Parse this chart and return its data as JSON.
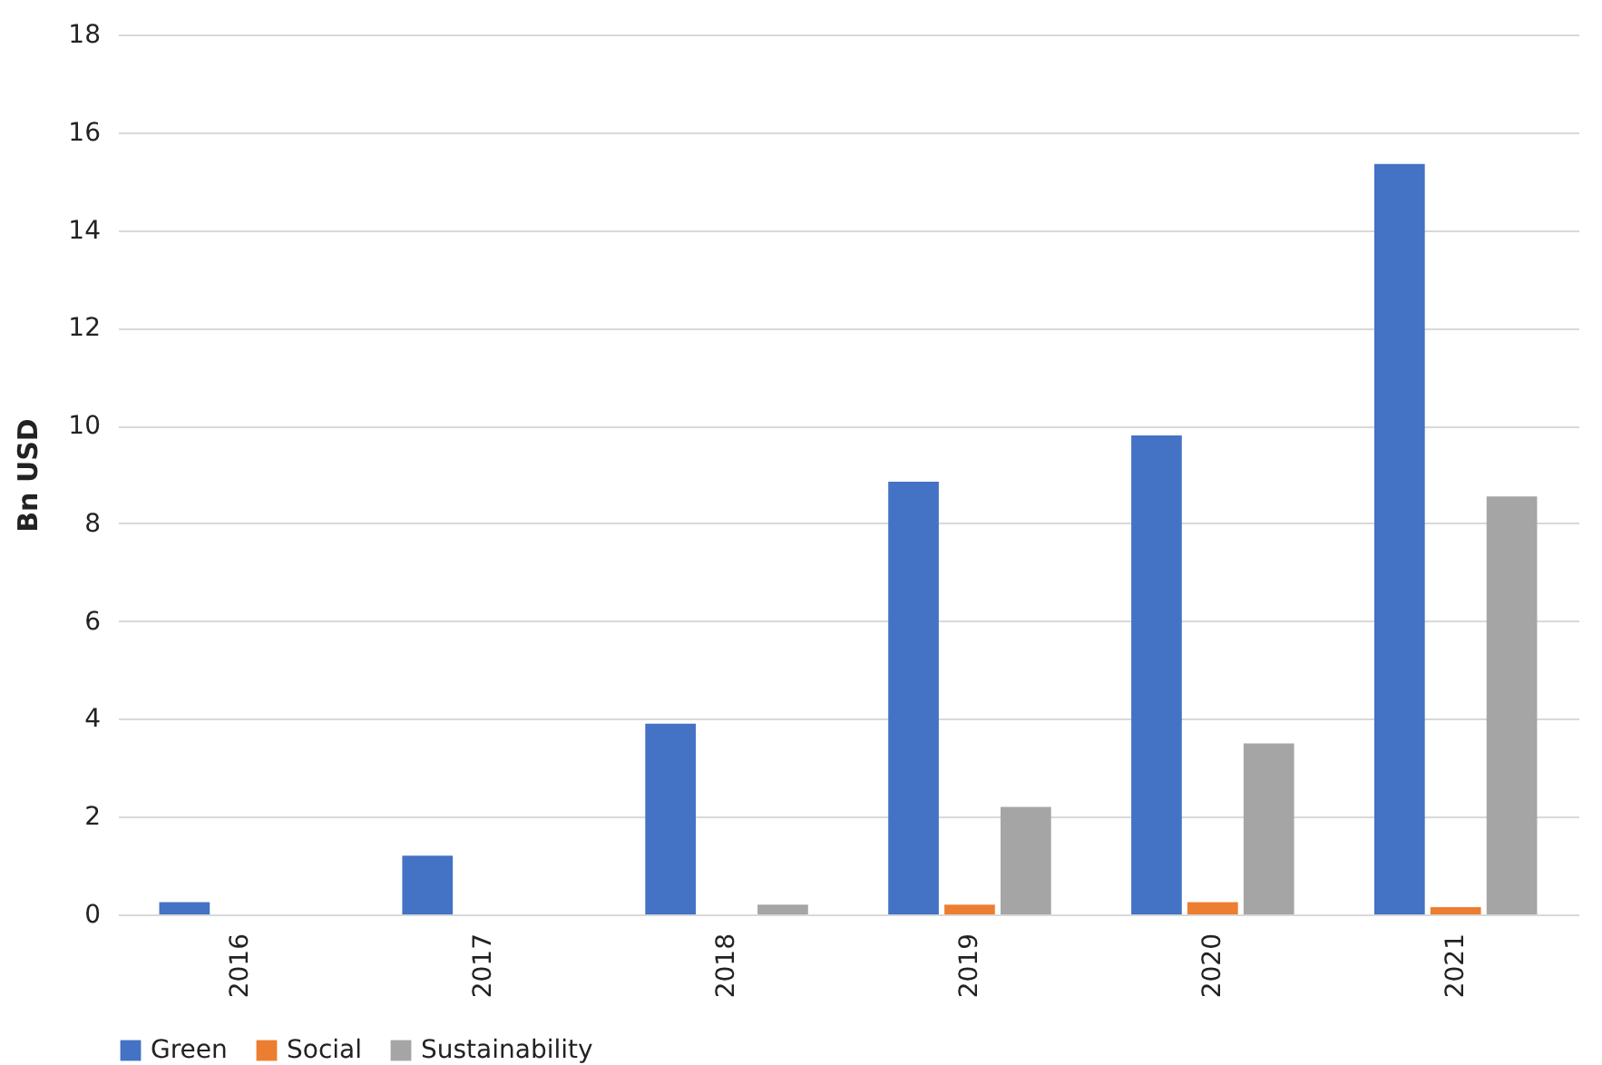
{
  "chart_data": {
    "type": "bar",
    "ylabel": "Bn USD",
    "categories": [
      "2016",
      "2017",
      "2018",
      "2019",
      "2020",
      "2021"
    ],
    "series": [
      {
        "name": "Green",
        "color": "#4472c4",
        "values": [
          0.25,
          1.2,
          3.9,
          8.85,
          9.8,
          15.35
        ]
      },
      {
        "name": "Social",
        "color": "#ed7d31",
        "values": [
          0,
          0,
          0,
          0.2,
          0.25,
          0.15
        ]
      },
      {
        "name": "Sustainability",
        "color": "#a5a5a5",
        "values": [
          0,
          0,
          0.2,
          2.2,
          3.5,
          8.55
        ]
      }
    ],
    "ylim": [
      0,
      18
    ],
    "yticks": [
      0,
      2,
      4,
      6,
      8,
      10,
      12,
      14,
      16,
      18
    ],
    "grid": "y",
    "legend": "bottom"
  }
}
